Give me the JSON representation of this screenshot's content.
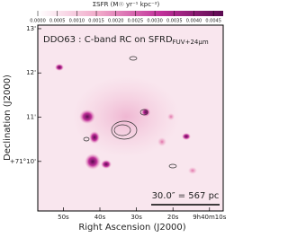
{
  "chart_data": {
    "type": "image",
    "annotation": "DDO63 : C-band RC on SFRD",
    "annotation_sub": "FUV+24μm",
    "scalebar_label": "30.0″ = 567 pc",
    "xlabel": "Right Ascension (J2000)",
    "ylabel": "Declination (J2000)",
    "xlim": [
      57,
      6.25
    ],
    "xticks": [
      {
        "value": 50,
        "label": "50s"
      },
      {
        "value": 40,
        "label": "40s"
      },
      {
        "value": 30,
        "label": "30s"
      },
      {
        "value": 20,
        "label": "20s"
      },
      {
        "value": 10,
        "label": "9h40m10s"
      }
    ],
    "ylim": [
      8.88,
      13.08
    ],
    "yticks": [
      {
        "value": 13,
        "label": "13'"
      },
      {
        "value": 12,
        "label": "12'"
      },
      {
        "value": 11,
        "label": "11'"
      },
      {
        "value": 10,
        "label": "+71°10'"
      }
    ],
    "colorbar": {
      "label": "ΣSFR (M☉ yr⁻¹ kpc⁻²)",
      "lim": [
        0,
        0.00475
      ],
      "colors": [
        "#ffffff",
        "#f0a8c8",
        "#c0309a",
        "#5a0a50"
      ],
      "ticks": [
        {
          "value": 0,
          "label": "0.0000"
        },
        {
          "value": 0.0005,
          "label": "0.0005"
        },
        {
          "value": 0.001,
          "label": "0.0010"
        },
        {
          "value": 0.0015,
          "label": "0.0015"
        },
        {
          "value": 0.002,
          "label": "0.0020"
        },
        {
          "value": 0.0025,
          "label": "0.0025"
        },
        {
          "value": 0.003,
          "label": "0.0030"
        },
        {
          "value": 0.0035,
          "label": "0.0035"
        },
        {
          "value": 0.004,
          "label": "0.0040"
        },
        {
          "value": 0.0045,
          "label": "0.0045"
        }
      ]
    }
  }
}
